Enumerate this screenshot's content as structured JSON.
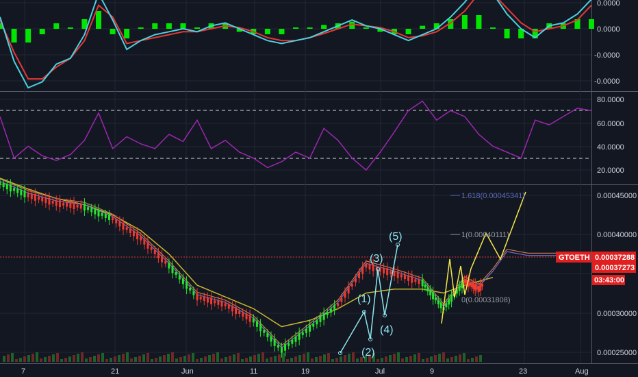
{
  "chart_data": [
    {
      "type": "line",
      "panel": "macd",
      "y_ticks": [
        "0.0000",
        "0.0000",
        "-0.0000",
        "-0.0000"
      ],
      "series": [
        {
          "color": "#4dd0e1",
          "x": [
            0,
            2,
            4,
            6,
            8,
            10,
            12,
            14,
            16,
            18,
            20,
            22,
            24,
            26,
            28,
            30,
            32,
            34,
            36,
            38,
            40,
            42,
            44,
            46,
            48,
            50,
            52,
            54,
            56,
            58,
            60,
            62,
            64,
            66,
            68,
            70,
            72,
            74,
            76,
            78,
            80,
            82,
            84
          ],
          "values": [
            0.2,
            -0.55,
            -1.0,
            -0.9,
            -0.6,
            -0.5,
            -0.1,
            0.6,
            0.15,
            -0.35,
            -0.2,
            -0.1,
            -0.05,
            0.0,
            -0.05,
            0.05,
            0.1,
            0.0,
            -0.1,
            -0.2,
            -0.25,
            -0.2,
            -0.15,
            -0.05,
            0.05,
            0.15,
            0.05,
            0.0,
            -0.1,
            -0.2,
            -0.1,
            0.0,
            0.2,
            0.45,
            0.75,
            0.6,
            0.25,
            0.0,
            -0.15,
            0.05,
            0.1,
            0.25,
            0.5
          ]
        },
        {
          "color": "#e53935",
          "x": [
            0,
            2,
            4,
            6,
            8,
            10,
            12,
            14,
            16,
            18,
            20,
            22,
            24,
            26,
            28,
            30,
            32,
            34,
            36,
            38,
            40,
            42,
            44,
            46,
            48,
            50,
            52,
            54,
            56,
            58,
            60,
            62,
            64,
            66,
            68,
            70,
            72,
            74,
            76,
            78,
            80,
            82,
            84
          ],
          "values": [
            0.15,
            -0.4,
            -0.85,
            -0.85,
            -0.65,
            -0.5,
            -0.2,
            0.4,
            0.2,
            -0.25,
            -0.2,
            -0.15,
            -0.1,
            -0.05,
            -0.05,
            0.0,
            0.05,
            0.02,
            -0.05,
            -0.15,
            -0.2,
            -0.2,
            -0.15,
            -0.08,
            0.0,
            0.08,
            0.05,
            0.02,
            -0.05,
            -0.15,
            -0.12,
            -0.05,
            0.1,
            0.3,
            0.6,
            0.6,
            0.35,
            0.1,
            -0.05,
            0.0,
            0.05,
            0.15,
            0.4
          ]
        }
      ],
      "histogram_color": "#00e600"
    },
    {
      "type": "line",
      "panel": "rsi",
      "y_ticks": [
        "80.0000",
        "60.0000",
        "40.0000",
        "20.0000"
      ],
      "ylim": [
        13,
        87
      ],
      "bands": [
        70,
        30
      ],
      "series": [
        {
          "color": "#9c27b0",
          "x": [
            0,
            2,
            4,
            6,
            8,
            10,
            12,
            14,
            16,
            18,
            20,
            22,
            24,
            26,
            28,
            30,
            32,
            34,
            36,
            38,
            40,
            42,
            44,
            46,
            48,
            50,
            52,
            54,
            56,
            58,
            60,
            62,
            64,
            66,
            68,
            70,
            72,
            74,
            76,
            78,
            80,
            82,
            84
          ],
          "values": [
            65,
            30,
            40,
            32,
            28,
            33,
            45,
            68,
            38,
            48,
            42,
            38,
            50,
            44,
            62,
            38,
            45,
            35,
            30,
            22,
            27,
            35,
            30,
            55,
            45,
            30,
            20,
            35,
            52,
            70,
            78,
            62,
            70,
            65,
            50,
            40,
            35,
            30,
            62,
            58,
            65,
            72,
            70
          ]
        }
      ]
    },
    {
      "type": "line",
      "panel": "price",
      "ylim": [
        0.000236,
        0.000466
      ],
      "y_ticks": [
        "0.00045000",
        "0.00040000",
        "0.00030000",
        "0.00025000"
      ],
      "x_ticks": [
        "7",
        "21",
        "Jun",
        "11",
        "19",
        "Jul",
        "9",
        "23",
        "Aug"
      ],
      "series": [
        {
          "name": "price",
          "color": "#e53935",
          "x": [
            0,
            4,
            8,
            12,
            16,
            20,
            24,
            28,
            32,
            36,
            40,
            44,
            48,
            52,
            56,
            60,
            63,
            66,
            68,
            70,
            72,
            75,
            78,
            80,
            82
          ],
          "values": [
            0.000465,
            0.00045,
            0.00044,
            0.000435,
            0.00042,
            0.000395,
            0.00036,
            0.00032,
            0.00031,
            0.00029,
            0.000252,
            0.00028,
            0.00031,
            0.00036,
            0.00035,
            0.000338,
            0.000305,
            0.00034,
            0.00033,
            0.00035,
            0.000375,
            0.00037,
            0.00037,
            0.00037,
            0.00037
          ]
        },
        {
          "name": "ema-slow",
          "color": "#c6b730",
          "x": [
            0,
            4,
            8,
            12,
            16,
            20,
            24,
            28,
            32,
            36,
            40,
            44,
            48,
            52,
            56,
            60,
            63,
            66,
            68,
            70
          ],
          "values": [
            0.000472,
            0.000458,
            0.000446,
            0.000438,
            0.000425,
            0.000405,
            0.000375,
            0.000335,
            0.00032,
            0.000305,
            0.000282,
            0.00029,
            0.000305,
            0.000325,
            0.00033,
            0.00033,
            0.000325,
            0.000335,
            0.00034,
            0.000345
          ]
        }
      ],
      "last_price": "0.00037288",
      "ticker": "GTOETH",
      "bid_label": "0.00037273",
      "countdown": "03:43:00",
      "fib_labels": [
        "1.618(0.00045341)",
        "1(0.00040111)",
        "0(0.00031808)"
      ],
      "wave_labels": [
        "(1)",
        "(2)",
        "(3)",
        "(4)",
        "(5)"
      ]
    }
  ]
}
